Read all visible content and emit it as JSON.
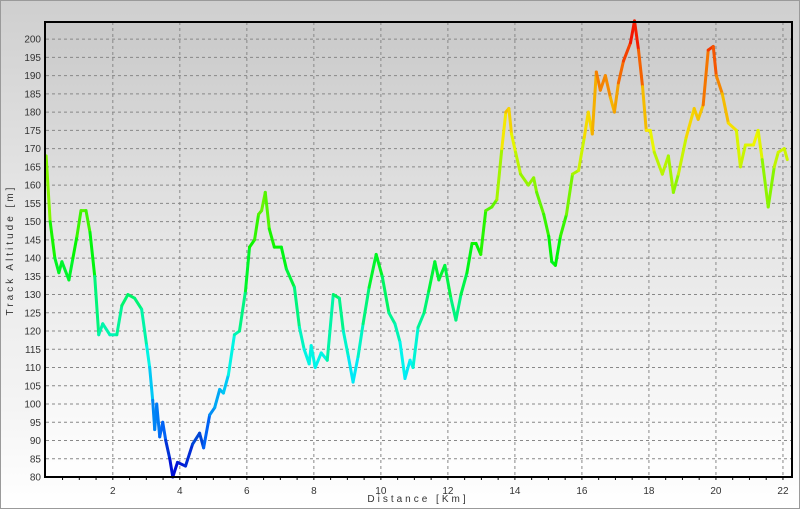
{
  "chart_data": {
    "type": "line",
    "title": "",
    "xlabel": "Distance [Km]",
    "ylabel": "Track Altitude [m]",
    "xlim": [
      0,
      22.27
    ],
    "ylim": [
      80,
      204.7
    ],
    "x_ticks": [
      2,
      4,
      6,
      8,
      10,
      12,
      14,
      16,
      18,
      20,
      22
    ],
    "y_ticks": [
      80,
      85,
      90,
      95,
      100,
      105,
      110,
      115,
      120,
      125,
      130,
      135,
      140,
      145,
      150,
      155,
      160,
      165,
      170,
      175,
      180,
      185,
      190,
      195,
      200
    ],
    "grid": true,
    "legend": "none",
    "color_scale": "altitude: blue (low) to red (high)",
    "series": [
      {
        "x": [
          0.01,
          0.13,
          0.27,
          0.39,
          0.48,
          0.69,
          0.81,
          0.93,
          1.05,
          1.2,
          1.32,
          1.46,
          1.58,
          1.7,
          1.91,
          2.12,
          2.27,
          2.45,
          2.65,
          2.86,
          3.01,
          3.1,
          3.19,
          3.25,
          3.31,
          3.4,
          3.49,
          3.58,
          3.7,
          3.79,
          3.93,
          4.17,
          4.38,
          4.59,
          4.71,
          4.89,
          5.04,
          5.19,
          5.3,
          5.45,
          5.63,
          5.78,
          5.96,
          6.08,
          6.23,
          6.35,
          6.44,
          6.55,
          6.67,
          6.82,
          7.03,
          7.18,
          7.42,
          7.57,
          7.71,
          7.86,
          7.92,
          8.04,
          8.22,
          8.4,
          8.58,
          8.76,
          8.88,
          9.03,
          9.17,
          9.32,
          9.47,
          9.65,
          9.86,
          10.04,
          10.24,
          10.42,
          10.57,
          10.72,
          10.87,
          10.96,
          11.11,
          11.29,
          11.43,
          11.61,
          11.73,
          11.91,
          12.09,
          12.24,
          12.39,
          12.57,
          12.72,
          12.84,
          12.98,
          13.13,
          13.31,
          13.46,
          13.61,
          13.73,
          13.82,
          13.9,
          14.02,
          14.17,
          14.4,
          14.56,
          14.65,
          14.86,
          15.01,
          15.1,
          15.21,
          15.36,
          15.54,
          15.72,
          15.9,
          16.07,
          16.19,
          16.31,
          16.43,
          16.55,
          16.7,
          16.85,
          16.97,
          17.09,
          17.24,
          17.45,
          17.57,
          17.69,
          17.81,
          17.92,
          18.04,
          18.16,
          18.4,
          18.58,
          18.73,
          18.88,
          19.11,
          19.35,
          19.47,
          19.62,
          19.77,
          19.92,
          20.01,
          20.19,
          20.37,
          20.61,
          20.73,
          20.88,
          21.12,
          21.26,
          21.38,
          21.56,
          21.74,
          21.86,
          22.04,
          22.13
        ],
        "y": [
          168,
          150,
          140,
          136,
          139,
          134,
          140,
          146,
          153,
          153,
          147,
          135,
          119,
          122,
          119,
          119,
          127,
          130,
          129,
          126,
          116,
          110,
          101,
          93,
          100,
          91,
          95,
          90,
          85,
          80,
          84,
          83,
          89,
          92,
          88,
          97,
          99,
          104,
          103,
          108,
          119,
          120,
          131,
          143,
          145,
          152,
          153,
          158,
          148,
          143,
          143,
          137,
          132,
          121,
          115,
          111,
          116,
          110,
          114,
          112,
          130,
          129,
          120,
          113,
          106,
          113,
          122,
          132,
          141,
          135,
          125,
          122,
          117,
          107,
          112,
          110,
          121,
          125,
          131,
          139,
          134,
          138,
          129,
          123,
          130,
          136,
          144,
          144,
          141,
          153,
          154,
          156,
          170,
          180,
          181,
          174,
          169,
          163,
          160,
          162,
          158,
          152,
          146,
          139,
          138,
          146,
          152,
          163,
          164,
          173,
          180,
          174,
          191,
          186,
          190,
          184,
          180,
          188,
          194,
          199,
          205,
          197,
          187,
          175,
          175,
          169,
          163,
          168,
          158,
          163,
          173,
          181,
          178,
          182,
          197,
          198,
          190,
          185,
          177,
          175,
          165,
          171,
          171,
          175,
          167,
          154,
          165,
          169,
          170,
          167
        ]
      }
    ]
  }
}
